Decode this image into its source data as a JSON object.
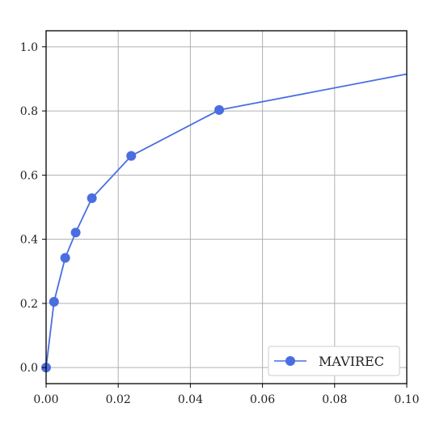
{
  "chart_data": {
    "type": "line",
    "title": "",
    "xlabel": "",
    "ylabel": "",
    "xlim": [
      0,
      0.1
    ],
    "ylim": [
      -0.05,
      1.05
    ],
    "x_ticks": [
      "0.00",
      "0.02",
      "0.04",
      "0.06",
      "0.08",
      "0.10"
    ],
    "y_ticks": [
      "0.0",
      "0.2",
      "0.4",
      "0.6",
      "0.8",
      "1.0"
    ],
    "grid": true,
    "legend": {
      "placement": "lower-right"
    },
    "series": [
      {
        "name": "MAVIREC",
        "color": "#4a6ee0",
        "marker": "circle",
        "x": [
          0.0,
          0.0022,
          0.0053,
          0.0082,
          0.0127,
          0.0236,
          0.048,
          0.1
        ],
        "y": [
          0.0,
          0.205,
          0.342,
          0.421,
          0.528,
          0.66,
          0.803,
          0.915
        ],
        "marker_shown": [
          true,
          true,
          true,
          true,
          true,
          true,
          true,
          false
        ]
      }
    ]
  }
}
